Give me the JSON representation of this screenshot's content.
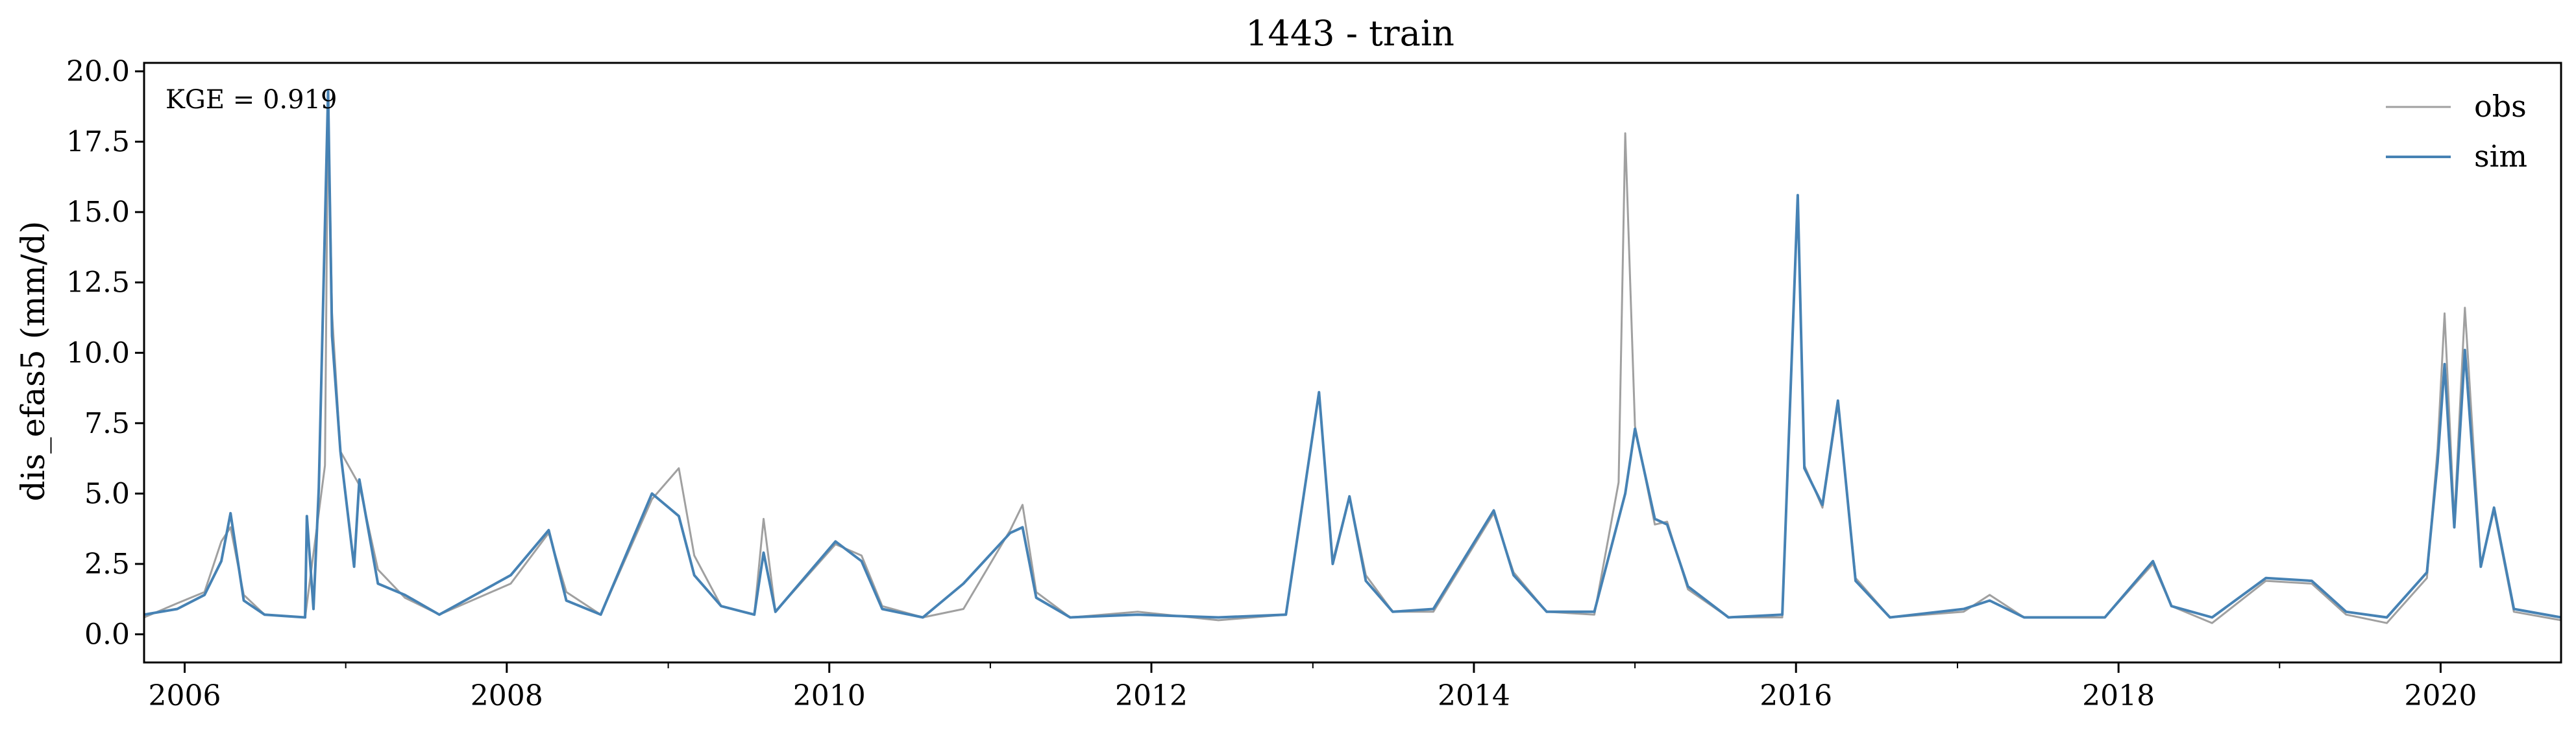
{
  "chart_data": {
    "type": "line",
    "title": "1443 - train",
    "xlabel": "",
    "ylabel": "dis_efas5 (mm/d)",
    "x_range": [
      "2005-10-01",
      "2020-09-30"
    ],
    "ylim": [
      -1.0,
      20.3
    ],
    "x_ticks": [
      "2006",
      "2008",
      "2010",
      "2012",
      "2014",
      "2016",
      "2018",
      "2020"
    ],
    "y_ticks": [
      "0.0",
      "2.5",
      "5.0",
      "7.5",
      "10.0",
      "12.5",
      "15.0",
      "17.5",
      "20.0"
    ],
    "y_tick_values": [
      0,
      2.5,
      5,
      7.5,
      10,
      12.5,
      15,
      17.5,
      20
    ],
    "grid": false,
    "legend_position": "top-right",
    "annotation": "KGE = 0.919",
    "series": [
      {
        "name": "obs",
        "color": "#a0a0a0",
        "points": [
          [
            "2005-10-01",
            0.6
          ],
          [
            "2005-12-15",
            1.1
          ],
          [
            "2006-02-15",
            1.5
          ],
          [
            "2006-03-25",
            3.3
          ],
          [
            "2006-04-15",
            3.8
          ],
          [
            "2006-05-15",
            1.4
          ],
          [
            "2006-07-01",
            0.7
          ],
          [
            "2006-10-01",
            0.6
          ],
          [
            "2006-11-15",
            6.0
          ],
          [
            "2006-11-22",
            19.2
          ],
          [
            "2006-12-01",
            11.4
          ],
          [
            "2006-12-20",
            6.5
          ],
          [
            "2007-02-01",
            5.3
          ],
          [
            "2007-03-15",
            2.3
          ],
          [
            "2007-05-15",
            1.3
          ],
          [
            "2007-08-01",
            0.7
          ],
          [
            "2008-01-10",
            1.8
          ],
          [
            "2008-04-05",
            3.6
          ],
          [
            "2008-05-15",
            1.5
          ],
          [
            "2008-08-01",
            0.7
          ],
          [
            "2008-11-25",
            4.8
          ],
          [
            "2009-01-25",
            5.9
          ],
          [
            "2009-03-01",
            2.8
          ],
          [
            "2009-05-01",
            1.0
          ],
          [
            "2009-07-15",
            0.7
          ],
          [
            "2009-08-05",
            4.1
          ],
          [
            "2009-09-01",
            0.8
          ],
          [
            "2010-01-15",
            3.2
          ],
          [
            "2010-03-15",
            2.8
          ],
          [
            "2010-05-01",
            1.0
          ],
          [
            "2010-08-01",
            0.6
          ],
          [
            "2010-11-01",
            0.9
          ],
          [
            "2011-02-15",
            3.7
          ],
          [
            "2011-03-15",
            4.6
          ],
          [
            "2011-04-15",
            1.5
          ],
          [
            "2011-07-01",
            0.6
          ],
          [
            "2011-12-01",
            0.8
          ],
          [
            "2012-06-01",
            0.5
          ],
          [
            "2012-11-01",
            0.7
          ],
          [
            "2013-01-15",
            8.6
          ],
          [
            "2013-02-15",
            2.6
          ],
          [
            "2013-03-25",
            4.9
          ],
          [
            "2013-05-01",
            2.1
          ],
          [
            "2013-07-01",
            0.8
          ],
          [
            "2013-10-01",
            0.8
          ],
          [
            "2014-02-15",
            4.3
          ],
          [
            "2014-04-01",
            2.2
          ],
          [
            "2014-06-15",
            0.8
          ],
          [
            "2014-10-01",
            0.7
          ],
          [
            "2014-11-25",
            5.4
          ],
          [
            "2014-12-10",
            17.8
          ],
          [
            "2015-01-01",
            7.4
          ],
          [
            "2015-02-15",
            3.9
          ],
          [
            "2015-03-15",
            4.0
          ],
          [
            "2015-05-01",
            1.6
          ],
          [
            "2015-08-01",
            0.6
          ],
          [
            "2015-12-01",
            0.6
          ],
          [
            "2016-01-05",
            15.5
          ],
          [
            "2016-01-20",
            6.0
          ],
          [
            "2016-03-01",
            4.5
          ],
          [
            "2016-04-05",
            8.2
          ],
          [
            "2016-05-15",
            2.0
          ],
          [
            "2016-08-01",
            0.6
          ],
          [
            "2017-01-15",
            0.8
          ],
          [
            "2017-03-15",
            1.4
          ],
          [
            "2017-06-01",
            0.6
          ],
          [
            "2017-12-01",
            0.6
          ],
          [
            "2018-03-20",
            2.5
          ],
          [
            "2018-05-01",
            1.0
          ],
          [
            "2018-08-01",
            0.4
          ],
          [
            "2018-12-01",
            1.9
          ],
          [
            "2019-03-15",
            1.8
          ],
          [
            "2019-06-01",
            0.7
          ],
          [
            "2019-09-01",
            0.4
          ],
          [
            "2019-12-01",
            2.0
          ],
          [
            "2019-12-25",
            6.6
          ],
          [
            "2020-01-10",
            11.4
          ],
          [
            "2020-02-01",
            4.0
          ],
          [
            "2020-02-25",
            11.6
          ],
          [
            "2020-04-01",
            2.5
          ],
          [
            "2020-05-01",
            4.4
          ],
          [
            "2020-06-15",
            0.8
          ],
          [
            "2020-09-30",
            0.5
          ]
        ]
      },
      {
        "name": "sim",
        "color": "#4682b4",
        "points": [
          [
            "2005-10-01",
            0.7
          ],
          [
            "2005-12-15",
            0.9
          ],
          [
            "2006-02-15",
            1.4
          ],
          [
            "2006-03-25",
            2.6
          ],
          [
            "2006-04-15",
            4.3
          ],
          [
            "2006-05-15",
            1.2
          ],
          [
            "2006-07-01",
            0.7
          ],
          [
            "2006-10-01",
            0.6
          ],
          [
            "2006-10-05",
            4.2
          ],
          [
            "2006-10-20",
            0.9
          ],
          [
            "2006-11-01",
            5.2
          ],
          [
            "2006-11-22",
            19.3
          ],
          [
            "2006-12-01",
            10.6
          ],
          [
            "2006-12-20",
            6.5
          ],
          [
            "2007-01-20",
            2.4
          ],
          [
            "2007-02-01",
            5.5
          ],
          [
            "2007-03-15",
            1.8
          ],
          [
            "2007-05-15",
            1.4
          ],
          [
            "2007-08-01",
            0.7
          ],
          [
            "2008-01-10",
            2.1
          ],
          [
            "2008-04-05",
            3.7
          ],
          [
            "2008-05-15",
            1.2
          ],
          [
            "2008-08-01",
            0.7
          ],
          [
            "2008-11-25",
            5.0
          ],
          [
            "2009-01-25",
            4.2
          ],
          [
            "2009-03-01",
            2.1
          ],
          [
            "2009-05-01",
            1.0
          ],
          [
            "2009-07-15",
            0.7
          ],
          [
            "2009-08-05",
            2.9
          ],
          [
            "2009-09-01",
            0.8
          ],
          [
            "2010-01-15",
            3.3
          ],
          [
            "2010-03-15",
            2.6
          ],
          [
            "2010-05-01",
            0.9
          ],
          [
            "2010-08-01",
            0.6
          ],
          [
            "2010-11-01",
            1.8
          ],
          [
            "2011-02-15",
            3.6
          ],
          [
            "2011-03-15",
            3.8
          ],
          [
            "2011-04-15",
            1.3
          ],
          [
            "2011-07-01",
            0.6
          ],
          [
            "2011-12-01",
            0.7
          ],
          [
            "2012-06-01",
            0.6
          ],
          [
            "2012-11-01",
            0.7
          ],
          [
            "2013-01-15",
            8.6
          ],
          [
            "2013-02-15",
            2.5
          ],
          [
            "2013-03-25",
            4.9
          ],
          [
            "2013-05-01",
            1.9
          ],
          [
            "2013-07-01",
            0.8
          ],
          [
            "2013-10-01",
            0.9
          ],
          [
            "2014-02-15",
            4.4
          ],
          [
            "2014-04-01",
            2.1
          ],
          [
            "2014-06-15",
            0.8
          ],
          [
            "2014-10-01",
            0.8
          ],
          [
            "2014-11-25",
            4.1
          ],
          [
            "2014-12-10",
            5.0
          ],
          [
            "2015-01-01",
            7.3
          ],
          [
            "2015-02-15",
            4.1
          ],
          [
            "2015-03-15",
            3.9
          ],
          [
            "2015-05-01",
            1.7
          ],
          [
            "2015-08-01",
            0.6
          ],
          [
            "2015-12-01",
            0.7
          ],
          [
            "2016-01-05",
            15.6
          ],
          [
            "2016-01-20",
            5.9
          ],
          [
            "2016-03-01",
            4.6
          ],
          [
            "2016-04-05",
            8.3
          ],
          [
            "2016-05-15",
            1.9
          ],
          [
            "2016-08-01",
            0.6
          ],
          [
            "2017-01-15",
            0.9
          ],
          [
            "2017-03-15",
            1.2
          ],
          [
            "2017-06-01",
            0.6
          ],
          [
            "2017-12-01",
            0.6
          ],
          [
            "2018-03-20",
            2.6
          ],
          [
            "2018-05-01",
            1.0
          ],
          [
            "2018-08-01",
            0.6
          ],
          [
            "2018-12-01",
            2.0
          ],
          [
            "2019-03-15",
            1.9
          ],
          [
            "2019-06-01",
            0.8
          ],
          [
            "2019-09-01",
            0.6
          ],
          [
            "2019-12-01",
            2.2
          ],
          [
            "2019-12-25",
            6.1
          ],
          [
            "2020-01-10",
            9.6
          ],
          [
            "2020-02-01",
            3.8
          ],
          [
            "2020-02-25",
            10.1
          ],
          [
            "2020-04-01",
            2.4
          ],
          [
            "2020-05-01",
            4.5
          ],
          [
            "2020-06-15",
            0.9
          ],
          [
            "2020-09-30",
            0.6
          ]
        ]
      }
    ]
  }
}
